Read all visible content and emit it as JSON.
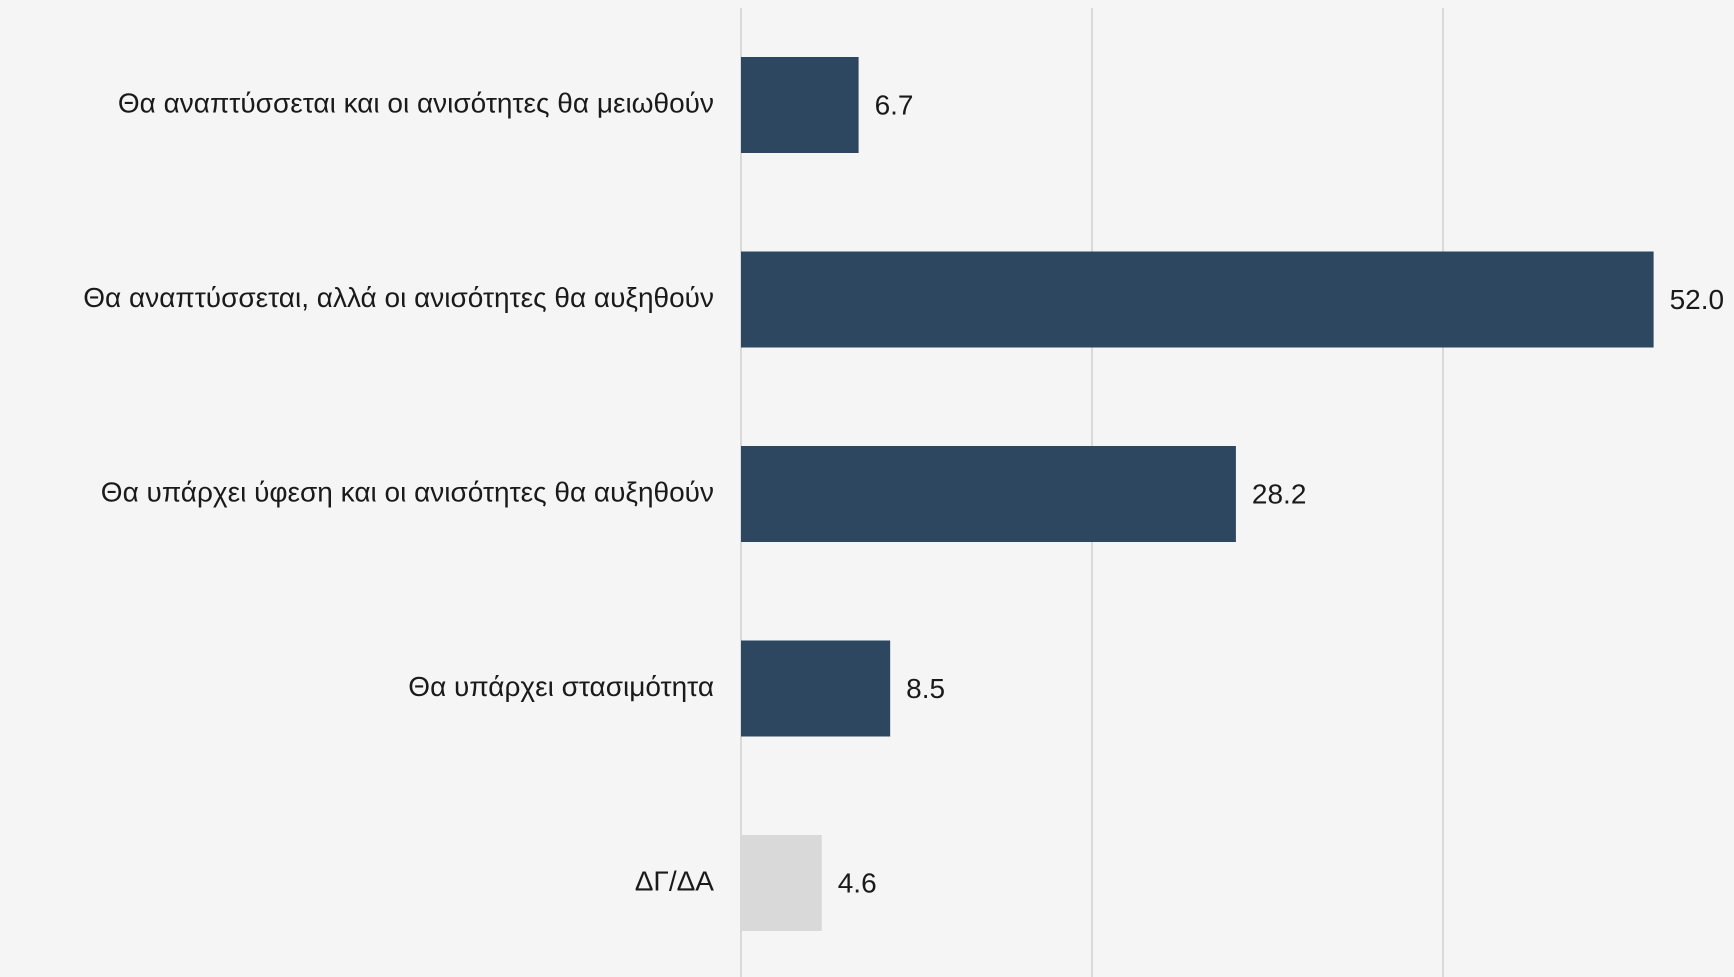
{
  "chart_data": {
    "type": "bar",
    "orientation": "horizontal",
    "categories": [
      "Θα αναπτύσσεται και οι ανισότητες θα μειωθούν",
      "Θα αναπτύσσεται, αλλά οι ανισότητες θα αυξηθούν",
      "Θα υπάρχει ύφεση και οι ανισότητες θα αυξηθούν",
      "Θα υπάρχει στασιμότητα",
      "ΔΓ/ΔΑ"
    ],
    "values": [
      6.7,
      52.0,
      28.2,
      8.5,
      4.6
    ],
    "value_labels": [
      "6.7",
      "52.0",
      "28.2",
      "8.5",
      "4.6"
    ],
    "bar_colors": [
      "#2c475f",
      "#2c475f",
      "#2c475f",
      "#2c475f",
      "#d9d9d9"
    ],
    "xlim": [
      0,
      60
    ],
    "x_gridlines": [
      0,
      20,
      40
    ],
    "grid": true,
    "title": "",
    "xlabel": "",
    "ylabel": ""
  },
  "colors": {
    "background": "#f5f5f5",
    "bar_primary": "#2c475f",
    "bar_secondary": "#d9d9d9",
    "gridline": "#d0d0d0",
    "text": "#1a1a1a"
  }
}
